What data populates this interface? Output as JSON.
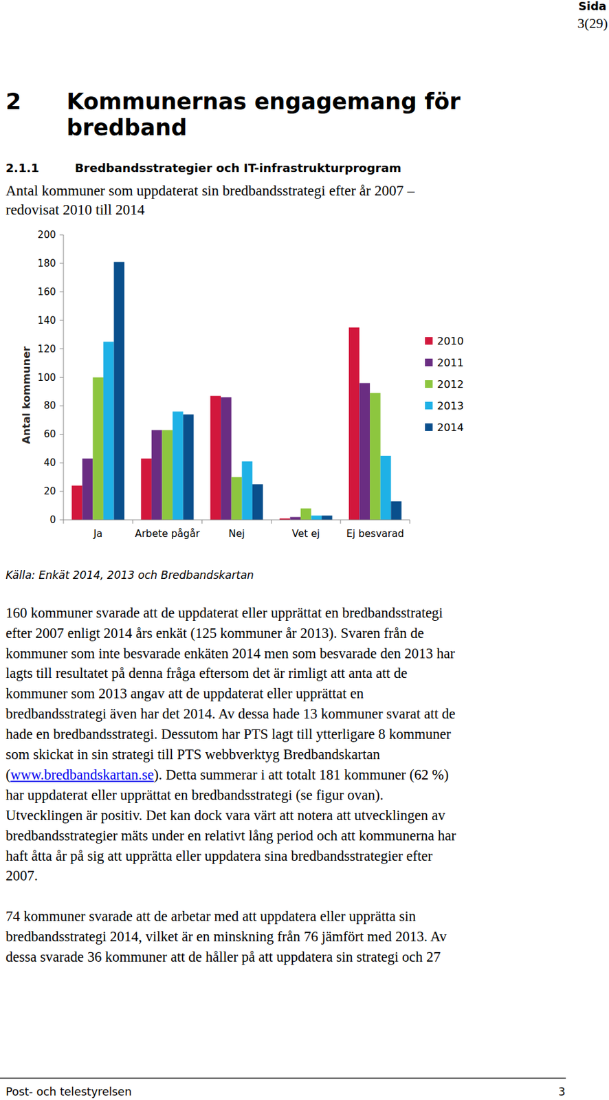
{
  "header": {
    "label": "Sida",
    "page": "3(29)"
  },
  "heading": {
    "number": "2",
    "lines": [
      "Kommunernas engagemang för",
      "bredband"
    ]
  },
  "subheading": {
    "number": "2.1.1",
    "text": "Bredbandsstrategier och IT-infrastrukturprogram"
  },
  "figure": {
    "title_lines": [
      "Antal kommuner som uppdaterat sin bredbandsstrategi efter år 2007 –",
      "redovisat 2010 till 2014"
    ],
    "source": "Källa: Enkät 2014, 2013 och Bredbandskartan"
  },
  "chart_data": {
    "type": "bar",
    "y_label": "Antal kommuner",
    "categories": [
      "Ja",
      "Arbete pågår",
      "Nej",
      "Vet ej",
      "Ej besvarad"
    ],
    "series": [
      {
        "name": "2010",
        "color": "#d2173c",
        "values": [
          24,
          43,
          87,
          1,
          135
        ]
      },
      {
        "name": "2011",
        "color": "#6a2d82",
        "values": [
          43,
          63,
          86,
          2,
          96
        ]
      },
      {
        "name": "2012",
        "color": "#8dc63f",
        "values": [
          100,
          63,
          30,
          8,
          89
        ]
      },
      {
        "name": "2013",
        "color": "#1fb1e6",
        "values": [
          125,
          76,
          41,
          3,
          45
        ]
      },
      {
        "name": "2014",
        "color": "#0a4f8c",
        "values": [
          181,
          74,
          25,
          3,
          13
        ]
      }
    ],
    "ylim": [
      0,
      200
    ],
    "yticks": [
      0,
      20,
      40,
      60,
      80,
      100,
      120,
      140,
      160,
      180,
      200
    ],
    "grid": false,
    "legend": "right"
  },
  "paragraphs": [
    {
      "lines": [
        "160 kommuner svarade att de uppdaterat eller upprättat en bredbandsstrategi",
        "efter 2007 enligt 2014 års enkät (125 kommuner år 2013). Svaren från de",
        "kommuner som inte besvarade enkäten 2014 men som besvarade den 2013 har",
        "lagts till resultatet på denna fråga eftersom det är rimligt att anta att de",
        "kommuner som 2013 angav att de uppdaterat eller upprättat en",
        "bredbandsstrategi även har det 2014. Av dessa hade 13 kommuner svarat att de",
        "hade en bredbandsstrategi. Dessutom har PTS lagt till ytterligare 8 kommuner",
        "som skickat in sin strategi till PTS webbverktyg Bredbandskartan",
        [
          "(",
          {
            "link": "www.bredbandskartan.se"
          },
          "). Detta summerar i att totalt 181 kommuner (62 %)"
        ],
        "har uppdaterat eller upprättat en bredbandsstrategi (se figur ovan).",
        "Utvecklingen är positiv. Det kan dock vara värt att notera att utvecklingen av",
        "bredbandsstrategier mäts under en relativt lång period och att kommunerna har",
        "haft åtta år på sig att upprätta eller uppdatera sina bredbandsstrategier efter",
        "2007."
      ]
    },
    {
      "lines": [
        "74 kommuner svarade att de arbetar med att uppdatera eller upprätta sin",
        "bredbandsstrategi 2014, vilket är en minskning från 76 jämfört med 2013. Av",
        "dessa svarade 36 kommuner att de håller på att uppdatera sin strategi och 27"
      ]
    }
  ],
  "footer": {
    "publisher": "Post- och telestyrelsen",
    "page": "3"
  }
}
